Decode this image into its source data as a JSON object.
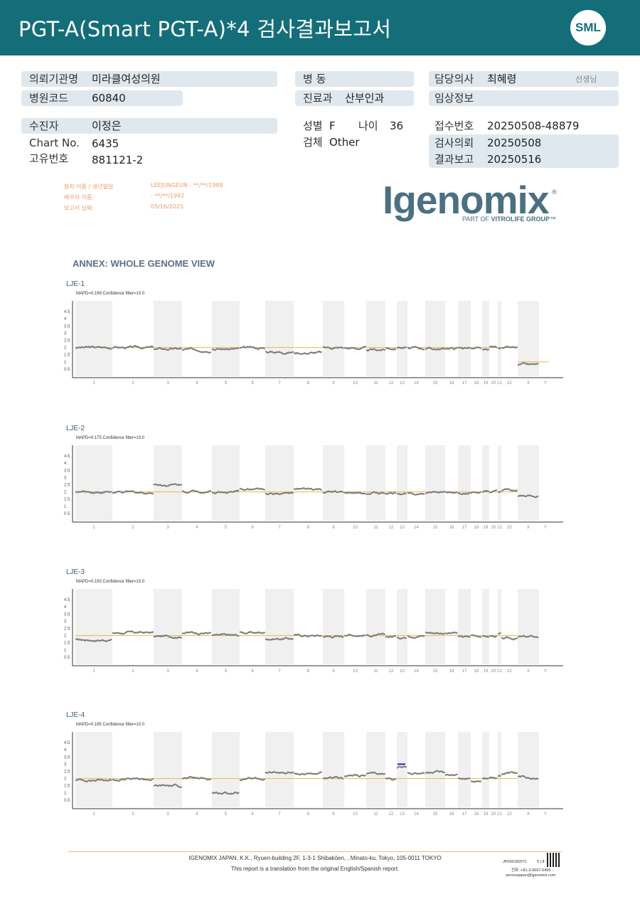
{
  "header": {
    "title": "PGT-A(Smart  PGT-A)*4 검사결과보고서",
    "logo": "SML",
    "bg_color": "#146e79"
  },
  "info": {
    "institution_label": "의뢰기관명",
    "institution": "미라클여성의원",
    "hospital_code_label": "병원코드",
    "hospital_code": "60840",
    "ward_label": "병  동",
    "ward": "",
    "dept_label": "진료과",
    "dept": "산부인과",
    "doctor_label": "담당의사",
    "doctor": "최혜령",
    "doctor_suffix": "선생님",
    "clinical_label": "임상정보",
    "clinical": "",
    "patient_label": "수진자",
    "patient": "이정은",
    "chart_label": "Chart No.",
    "chart": "6435",
    "id_label": "고유번호",
    "id": "881121-2",
    "sex_label": "성별",
    "sex": "F",
    "age_label": "나이",
    "age": "36",
    "specimen_label": "검체",
    "specimen": "Other",
    "receipt_label": "접수번호",
    "receipt": "20250508-48879",
    "request_label": "검사의뢰",
    "request": "20250508",
    "report_label": "결과보고",
    "report": "20250516"
  },
  "stamp": {
    "patient_row_label": "환자 이름 / 생년월일",
    "patient_row_value": "LEEJUNGEUN - **/**/1988",
    "partner_row_label": "배우자 이름:",
    "partner_row_value": " - **/**/1992",
    "date_row_label": "보고서 날짜:",
    "date_row_value": "05/16/2025"
  },
  "brand": {
    "name": "Igenomix",
    "reg": "®",
    "sub_prefix": "PART OF ",
    "sub_brand": "VITROLIFE GROUP",
    "sub_suffix": "™",
    "color": "#4c6f82"
  },
  "annex_title": "ANNEX: WHOLE GENOME VIEW",
  "chart_data": [
    {
      "type": "scatter",
      "title": "LJE-1",
      "subtitle": "MAPD=0.199 Confidence filter=10.0",
      "categories": [
        "1",
        "2",
        "3",
        "4",
        "5",
        "6",
        "7",
        "8",
        "9",
        "10",
        "11",
        "12",
        "13",
        "14",
        "15",
        "16",
        "17",
        "18",
        "19",
        "20",
        "21",
        "22",
        "X",
        "Y"
      ],
      "y_ticks": [
        "0.5",
        "1",
        "1.5",
        "2",
        "2.5",
        "3",
        "3.5",
        "4",
        "4.5"
      ],
      "ylim": [
        0,
        5
      ],
      "reference_line": 2,
      "series": [
        {
          "values": [
            2.0,
            2.0,
            1.9,
            1.85,
            1.9,
            1.95,
            1.7,
            1.65,
            2.0,
            1.95,
            1.85,
            1.95,
            2.0,
            1.95,
            1.9,
            1.95,
            2.0,
            1.9,
            1.8,
            2.05,
            2.0,
            1.95,
            0.8,
            0
          ]
        }
      ],
      "extra_lines": [
        {
          "chromosome": "X",
          "y": 1,
          "color": "#e8b84a"
        }
      ]
    },
    {
      "type": "scatter",
      "title": "LJE-2",
      "subtitle": "MAPD=0.175 Confidence filter=10.0",
      "categories": [
        "1",
        "2",
        "3",
        "4",
        "5",
        "6",
        "7",
        "8",
        "9",
        "10",
        "11",
        "12",
        "13",
        "14",
        "15",
        "16",
        "17",
        "18",
        "19",
        "20",
        "21",
        "22",
        "X",
        "Y"
      ],
      "y_ticks": [
        "0.5",
        "1",
        "1.5",
        "2",
        "2.5",
        "3",
        "3.5",
        "4",
        "4.5"
      ],
      "ylim": [
        0,
        5
      ],
      "reference_line": 2,
      "series": [
        {
          "values": [
            2.0,
            1.95,
            2.5,
            2.05,
            2.0,
            2.2,
            1.9,
            2.15,
            1.95,
            1.9,
            1.9,
            1.9,
            1.9,
            1.95,
            1.95,
            1.95,
            1.95,
            1.95,
            1.95,
            2.0,
            2.0,
            2.1,
            1.7,
            0
          ]
        }
      ],
      "extra_lines": []
    },
    {
      "type": "scatter",
      "title": "LJE-3",
      "subtitle": "MAPD=0.193 Confidence filter=10.0",
      "categories": [
        "1",
        "2",
        "3",
        "4",
        "5",
        "6",
        "7",
        "8",
        "9",
        "10",
        "11",
        "12",
        "13",
        "14",
        "15",
        "16",
        "17",
        "18",
        "19",
        "20",
        "21",
        "22",
        "X",
        "Y"
      ],
      "y_ticks": [
        "0.5",
        "1",
        "1.5",
        "2",
        "2.5",
        "3",
        "3.5",
        "4",
        "4.5"
      ],
      "ylim": [
        0,
        5
      ],
      "reference_line": 2,
      "series": [
        {
          "values": [
            1.7,
            2.2,
            1.95,
            2.2,
            2.0,
            2.2,
            1.8,
            2.0,
            1.95,
            2.05,
            2.0,
            1.95,
            1.9,
            2.0,
            2.2,
            2.15,
            1.9,
            2.0,
            1.9,
            1.95,
            2.1,
            1.8,
            1.9,
            0
          ]
        }
      ],
      "extra_lines": []
    },
    {
      "type": "scatter",
      "title": "LJE-4",
      "subtitle": "MAPD=0.195 Confidence filter=10.0",
      "categories": [
        "1",
        "2",
        "3",
        "4",
        "5",
        "6",
        "7",
        "8",
        "9",
        "10",
        "11",
        "12",
        "13",
        "14",
        "15",
        "16",
        "17",
        "18",
        "19",
        "20",
        "21",
        "22",
        "X",
        "Y"
      ],
      "y_ticks": [
        "0.5",
        "1",
        "1.5",
        "2",
        "2.5",
        "3",
        "3.5",
        "4",
        "4.5"
      ],
      "ylim": [
        0,
        5
      ],
      "reference_line": 2,
      "series": [
        {
          "values": [
            1.9,
            1.95,
            1.5,
            2.0,
            1.0,
            1.95,
            2.4,
            2.35,
            2.0,
            2.2,
            2.3,
            2.0,
            2.8,
            2.4,
            2.4,
            2.3,
            2.0,
            1.85,
            1.95,
            2.1,
            2.2,
            2.3,
            2.1,
            0
          ]
        }
      ],
      "extra_lines": [
        {
          "chromosome": "13",
          "y": 3,
          "color": "#1a24c8"
        }
      ]
    }
  ],
  "footer": {
    "company": "IGENOMIX JAPAN, K.K., Ryuen-building 2F, 1-3-1 Shibakōen, , Minato-ku, Tokyo, 105-0011 TOKYO",
    "note": "This report is a translation from the original English/Spanish report.",
    "doc_id": "JP000182071",
    "page": "5 | 8",
    "phone": "전화: +81-3-6667-0456 -",
    "email": "servicejapan@igenomix.com"
  }
}
